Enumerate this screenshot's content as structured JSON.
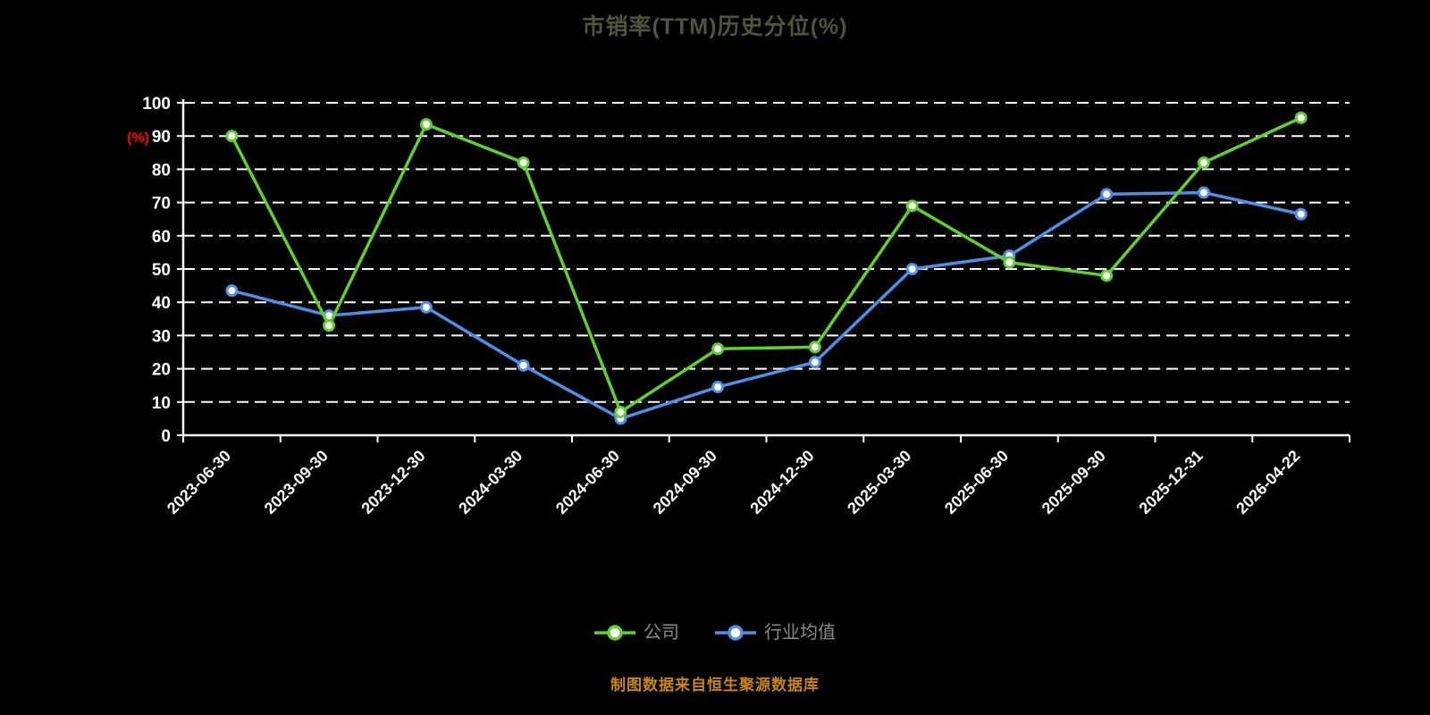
{
  "title": "市销率(TTM)历史分位(%)",
  "footer": {
    "source_note": "制图数据来自恒生聚源数据库"
  },
  "chart_data": {
    "type": "line",
    "title": "市销率(TTM)历史分位(%)",
    "xlabel": "",
    "ylabel": "(%)",
    "ylim": [
      0,
      100
    ],
    "y_ticks": [
      0,
      10,
      20,
      30,
      40,
      50,
      60,
      70,
      80,
      90,
      100
    ],
    "grid": "horizontal-dashed",
    "legend_position": "bottom",
    "background_color": "#000000",
    "categories": [
      "2023-06-30",
      "2023-09-30",
      "2023-12-30",
      "2024-03-30",
      "2024-06-30",
      "2024-09-30",
      "2024-12-30",
      "2025-03-30",
      "2025-06-30",
      "2025-09-30",
      "2025-12-31",
      "2026-04-22"
    ],
    "series": [
      {
        "name": "公司",
        "color": "#5fd02f",
        "values": [
          90,
          33,
          93.5,
          82,
          7,
          26,
          26.5,
          69,
          52,
          48,
          82,
          95.5
        ]
      },
      {
        "name": "行业均值",
        "color": "#4f8fe6",
        "values": [
          43.5,
          36,
          38.5,
          21,
          5,
          14.5,
          22,
          50,
          54,
          72.5,
          73,
          66.5
        ]
      }
    ]
  }
}
